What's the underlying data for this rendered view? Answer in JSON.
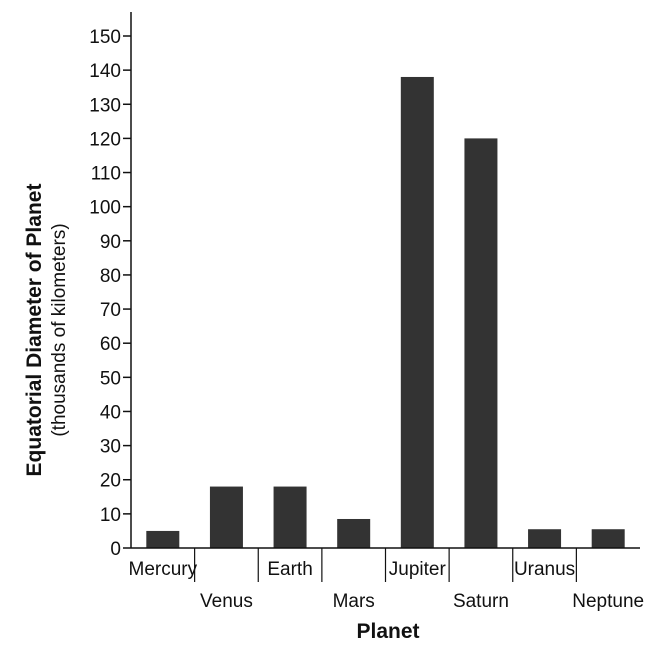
{
  "chart_data": {
    "type": "bar",
    "title": "",
    "xlabel": "Planet",
    "ylabel": "Equatorial Diameter of Planet",
    "ylabel_sub": "(thousands of kilometers)",
    "categories": [
      "Mercury",
      "Venus",
      "Earth",
      "Mars",
      "Jupiter",
      "Saturn",
      "Uranus",
      "Neptune"
    ],
    "values": [
      5,
      18,
      18,
      8.5,
      138,
      120,
      5.5,
      5.5
    ],
    "ylim": [
      0,
      150
    ],
    "yticks": [
      0,
      10,
      20,
      30,
      40,
      50,
      60,
      70,
      80,
      90,
      100,
      110,
      120,
      130,
      140,
      150
    ],
    "grid": false,
    "legend": "none",
    "bar_color": "#333333"
  }
}
